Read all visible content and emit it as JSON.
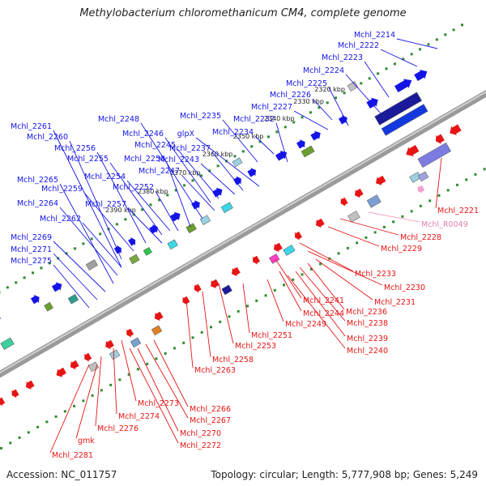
{
  "title": "Methylobacterium chloromethanicum CM4, complete genome",
  "footer": {
    "accession": "Accession: NC_011757",
    "summary": "Topology: circular; Length: 5,777,908 bp; Genes: 5,249"
  },
  "colors": {
    "forward": "#1414e6",
    "reverse": "#e61414",
    "rna": "#f2a0c8",
    "backbone": "#888888",
    "tick": "#2e8b2e"
  },
  "ticks": [
    "2320 kbp",
    "2330 kbp",
    "2340 kbp",
    "2350 kbp",
    "2360 kbp",
    "2370 kbp",
    "2380 kbp",
    "2390 kbp"
  ],
  "forward_genes": [
    "Mchl_2214",
    "Mchl_2222",
    "Mchl_2223",
    "Mchl_2224",
    "Mchl_2225",
    "Mchl_2226",
    "Mchl_2227",
    "Mchl_2232",
    "Mchl_2234",
    "Mchl_2235",
    "glpX",
    "Mchl_2237",
    "Mchl_2243",
    "Mchl_2245",
    "Mchl_2246",
    "Mchl_2247",
    "Mchl_2248",
    "Mchl_2250",
    "Mchl_2252",
    "Mchl_2254",
    "Mchl_2255",
    "Mchl_2256",
    "Mchl_2257",
    "Mchl_2259",
    "Mchl_2260",
    "Mchl_2261",
    "Mchl_2262",
    "Mchl_2264",
    "Mchl_2265",
    "Mchl_2269",
    "Mchl_2271",
    "Mchl_2275"
  ],
  "reverse_genes": [
    "Mchl_2221",
    "Mchl_R0049",
    "Mchl_2228",
    "Mchl_2229",
    "Mchl_2233",
    "Mchl_2230",
    "Mchl_2231",
    "Mchl_2236",
    "Mchl_2238",
    "Mchl_2239",
    "Mchl_2240",
    "Mchl_2241",
    "Mchl_2244",
    "Mchl_2249",
    "Mchl_2251",
    "Mchl_2253",
    "Mchl_2258",
    "Mchl_2263",
    "Mchl_2266",
    "Mchl_2267",
    "Mchl_2270",
    "Mchl_2272",
    "Mchl_2273",
    "Mchl_2274",
    "Mchl_2276",
    "gmk",
    "Mchl_2281"
  ]
}
